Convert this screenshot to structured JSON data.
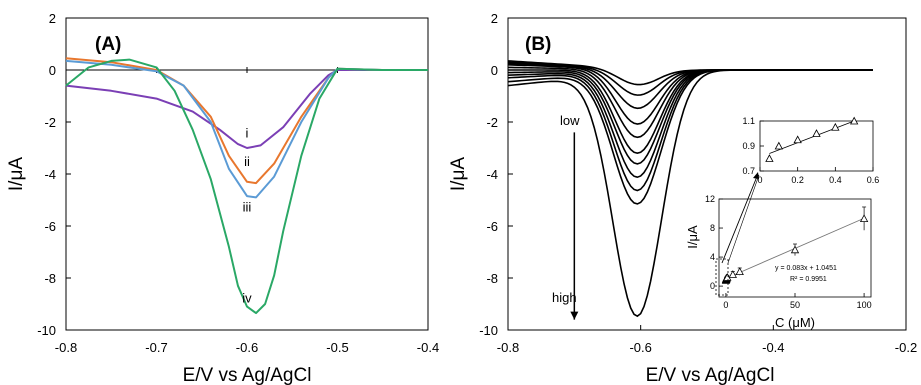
{
  "chart_data": [
    {
      "type": "line",
      "panel_label": "(A)",
      "xlabel": "E/V vs Ag/AgCl",
      "ylabel": "I/μA",
      "xlim": [
        -0.8,
        -0.4
      ],
      "ylim": [
        -10,
        2
      ],
      "xticks": [
        "-0.8",
        "-0.7",
        "-0.6",
        "-0.5",
        "-0.4"
      ],
      "yticks": [
        "2",
        "0",
        "-2",
        "-4",
        "-6",
        "-8",
        "-10"
      ],
      "xtick_values": [
        -0.8,
        -0.7,
        -0.6,
        -0.5,
        -0.4
      ],
      "ytick_values": [
        2,
        0,
        -2,
        -4,
        -6,
        -8,
        -10
      ],
      "grid": false,
      "series": [
        {
          "label": "i",
          "color": "#7b3fb5",
          "x": [
            -0.8,
            -0.75,
            -0.7,
            -0.66,
            -0.63,
            -0.61,
            -0.6,
            -0.585,
            -0.56,
            -0.53,
            -0.51,
            -0.5,
            -0.45,
            -0.4
          ],
          "y": [
            -0.6,
            -0.8,
            -1.1,
            -1.6,
            -2.3,
            -2.85,
            -3.0,
            -2.9,
            -2.2,
            -0.9,
            -0.2,
            0.0,
            0.0,
            0.0
          ]
        },
        {
          "label": "ii",
          "color": "#e8772e",
          "x": [
            -0.8,
            -0.75,
            -0.7,
            -0.67,
            -0.64,
            -0.62,
            -0.6,
            -0.59,
            -0.57,
            -0.54,
            -0.51,
            -0.5,
            -0.45,
            -0.4
          ],
          "y": [
            0.45,
            0.3,
            0.0,
            -0.6,
            -1.8,
            -3.3,
            -4.3,
            -4.35,
            -3.6,
            -1.8,
            -0.3,
            0.05,
            0.0,
            0.0
          ]
        },
        {
          "label": "iii",
          "color": "#5b9bd5",
          "x": [
            -0.8,
            -0.75,
            -0.7,
            -0.67,
            -0.64,
            -0.62,
            -0.6,
            -0.59,
            -0.57,
            -0.54,
            -0.51,
            -0.5,
            -0.45,
            -0.4
          ],
          "y": [
            0.35,
            0.2,
            -0.05,
            -0.6,
            -2.0,
            -3.8,
            -4.85,
            -4.9,
            -4.1,
            -2.0,
            -0.3,
            0.05,
            0.0,
            0.0
          ]
        },
        {
          "label": "iv",
          "color": "#2aa866",
          "x": [
            -0.8,
            -0.775,
            -0.75,
            -0.73,
            -0.7,
            -0.68,
            -0.66,
            -0.64,
            -0.62,
            -0.61,
            -0.6,
            -0.59,
            -0.58,
            -0.57,
            -0.56,
            -0.54,
            -0.52,
            -0.5,
            -0.45,
            -0.4
          ],
          "y": [
            -0.6,
            0.1,
            0.35,
            0.4,
            0.1,
            -0.8,
            -2.3,
            -4.2,
            -6.8,
            -8.3,
            -9.1,
            -9.35,
            -9.0,
            -7.9,
            -6.2,
            -3.3,
            -1.1,
            0.05,
            0.0,
            0.0
          ]
        }
      ]
    },
    {
      "type": "line",
      "panel_label": "(B)",
      "xlabel": "E/V vs Ag/AgCl",
      "ylabel": "I/μA",
      "xlim": [
        -0.8,
        -0.2
      ],
      "ylim": [
        -10,
        2
      ],
      "xticks": [
        "-0.8",
        "-0.6",
        "-0.4",
        "-0.2"
      ],
      "yticks": [
        "2",
        "0",
        "-2",
        "-4",
        "-6",
        "-8",
        "-10"
      ],
      "xtick_values": [
        -0.8,
        -0.6,
        -0.4,
        -0.2
      ],
      "ytick_values": [
        2,
        0,
        -2,
        -4,
        -6,
        -8,
        -10
      ],
      "grid": false,
      "annotations": {
        "low": "low",
        "high": "high",
        "arrow_from_y": -2.4,
        "arrow_to_y": -9.6,
        "arrow_x": -0.7
      },
      "series_color": "#000000",
      "peak_potential": -0.605,
      "peak_currents": [
        -0.6,
        -1.0,
        -1.5,
        -2.1,
        -2.6,
        -3.2,
        -3.6,
        -4.1,
        -4.6,
        -5.1,
        -9.4
      ],
      "start_currents": [
        0.35,
        0.3,
        0.25,
        0.2,
        0.1,
        0.0,
        -0.1,
        -0.2,
        -0.3,
        -0.45,
        -0.6
      ]
    },
    {
      "type": "scatter",
      "role": "inset-main",
      "xlabel": "C (μM)",
      "ylabel": "I/μA",
      "xlim": [
        -5,
        105
      ],
      "ylim": [
        -1.5,
        12
      ],
      "xticks": [
        "0",
        "50",
        "100"
      ],
      "yticks": [
        "0",
        "4",
        "8",
        "12"
      ],
      "xtick_values": [
        0,
        50,
        100
      ],
      "ytick_values": [
        0,
        4,
        8,
        12
      ],
      "equation": "y = 0.083x + 1.0451",
      "r2": "R² = 0.9951",
      "x": [
        0.05,
        0.1,
        0.2,
        0.3,
        0.4,
        0.5,
        1,
        5,
        10,
        50,
        100
      ],
      "y": [
        0.8,
        0.9,
        0.95,
        1.0,
        1.05,
        1.1,
        1.2,
        1.6,
        2.0,
        5.0,
        9.3
      ],
      "error": [
        0.2,
        0.2,
        0.2,
        0.2,
        0.2,
        0.2,
        0.3,
        0.4,
        0.5,
        0.8,
        1.6
      ],
      "fit": {
        "slope": 0.083,
        "intercept": 1.0451
      }
    },
    {
      "type": "scatter",
      "role": "inset-zoom",
      "xlim": [
        0,
        0.6
      ],
      "ylim": [
        0.7,
        1.1
      ],
      "xticks": [
        "0",
        "0.2",
        "0.4",
        "0.6"
      ],
      "yticks": [
        "0.7",
        "0.9",
        "1.1"
      ],
      "xtick_values": [
        0,
        0.2,
        0.4,
        0.6
      ],
      "ytick_values": [
        0.7,
        0.9,
        1.1
      ],
      "x": [
        0.05,
        0.1,
        0.2,
        0.3,
        0.4,
        0.5
      ],
      "y": [
        0.8,
        0.9,
        0.95,
        1.0,
        1.05,
        1.1
      ],
      "fit": {
        "x": [
          0.05,
          0.5
        ],
        "y": [
          0.84,
          1.1
        ]
      }
    }
  ]
}
